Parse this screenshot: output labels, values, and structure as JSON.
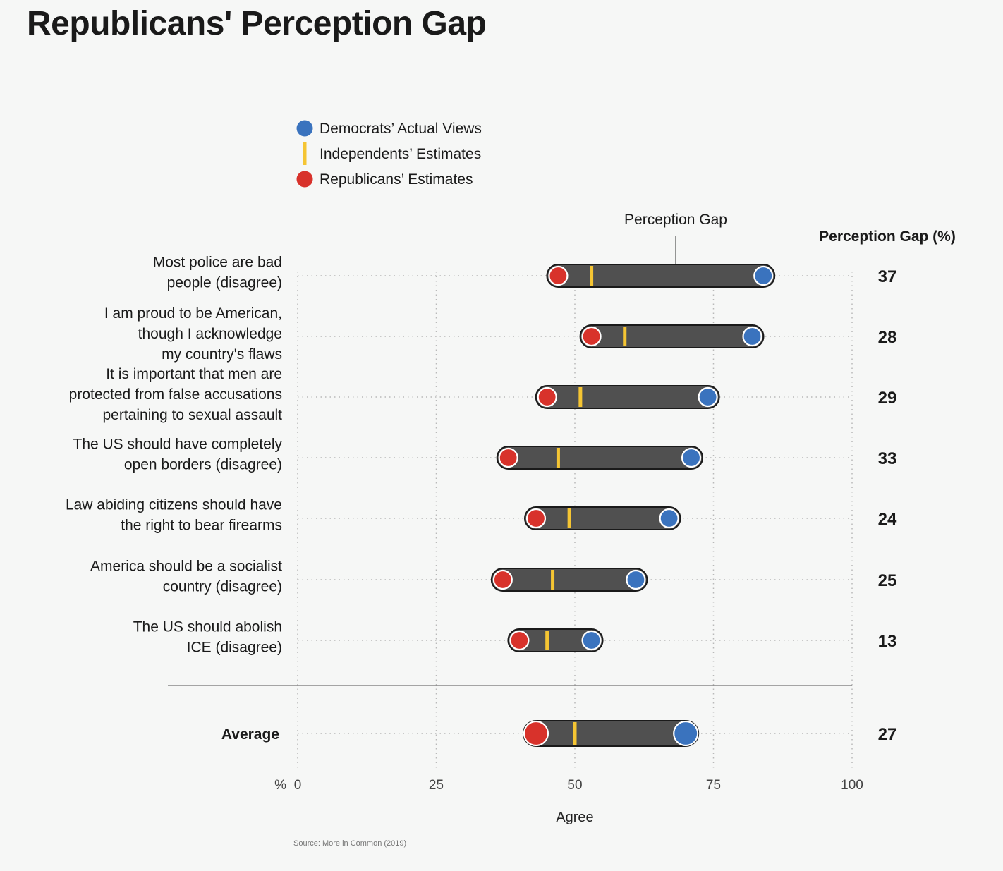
{
  "title": "Republicans' Perception Gap",
  "chart_data": {
    "type": "dumbbell",
    "xlabel": "Agree",
    "x_unit_label": "%",
    "xlim": [
      0,
      100
    ],
    "xticks": [
      0,
      25,
      50,
      75,
      100
    ],
    "grid": true,
    "legend": {
      "position": "top-left",
      "entries": [
        {
          "name": "Democrats’ Actual Views",
          "color": "#3a73be",
          "marker": "circle"
        },
        {
          "name": "Independents’ Estimates",
          "color": "#f5c533",
          "marker": "line"
        },
        {
          "name": "Republicans’ Estimates",
          "color": "#d8322b",
          "marker": "circle"
        }
      ]
    },
    "annotation": "Perception Gap",
    "gap_header": "Perception Gap (%)",
    "rows": [
      {
        "label": [
          "Most police are bad",
          "people (disagree)"
        ],
        "republicans": 47,
        "independents": 53,
        "democrats": 84,
        "gap": "37"
      },
      {
        "label": [
          "I am proud to be American,",
          "though I acknowledge",
          "my country's flaws"
        ],
        "republicans": 53,
        "independents": 59,
        "democrats": 82,
        "gap": "28"
      },
      {
        "label": [
          "It is important that men are",
          "protected from false accusations",
          "pertaining to sexual assault"
        ],
        "republicans": 45,
        "independents": 51,
        "democrats": 74,
        "gap": "29"
      },
      {
        "label": [
          "The US should have completely",
          "open borders (disagree)"
        ],
        "republicans": 38,
        "independents": 47,
        "democrats": 71,
        "gap": "33"
      },
      {
        "label": [
          "Law abiding citizens should have",
          "the right to bear firearms"
        ],
        "republicans": 43,
        "independents": 49,
        "democrats": 67,
        "gap": "24"
      },
      {
        "label": [
          "America should be a socialist",
          "country (disagree)"
        ],
        "republicans": 37,
        "independents": 46,
        "democrats": 61,
        "gap": "25"
      },
      {
        "label": [
          "The US should abolish",
          "ICE (disagree)"
        ],
        "republicans": 40,
        "independents": 45,
        "democrats": 53,
        "gap": "13"
      }
    ],
    "average": {
      "label": "Average",
      "republicans": 43,
      "independents": 50,
      "democrats": 70,
      "gap": "27"
    },
    "source": "Source: More in Common (2019)"
  },
  "colors": {
    "democrats": "#3a73be",
    "independents": "#f5c533",
    "republicans": "#d8322b",
    "bar": "#505050",
    "bar_outline": "#1a1a1a",
    "grid": "#b9b9b9"
  }
}
